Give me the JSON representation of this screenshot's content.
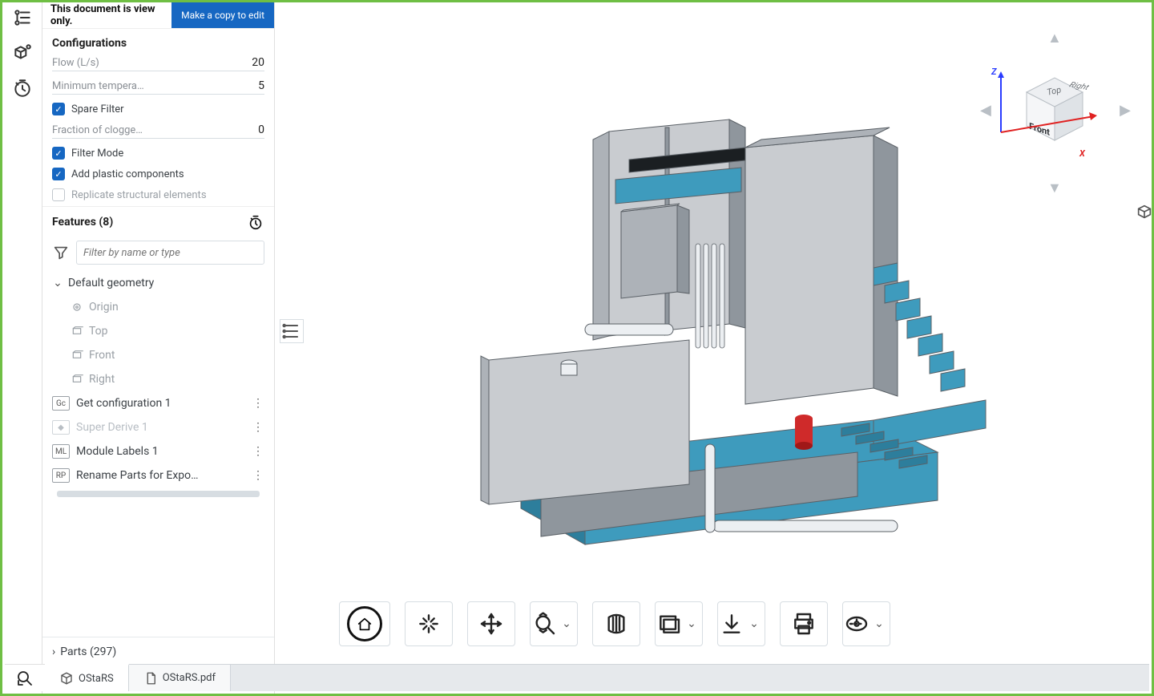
{
  "notice": {
    "text": "This document is view only.",
    "button": "Make a copy to edit"
  },
  "configurations": {
    "title": "Configurations",
    "rows": [
      {
        "kind": "num",
        "label": "Flow (L/s)",
        "value": "20"
      },
      {
        "kind": "num",
        "label": "Minimum tempera…",
        "value": "5"
      },
      {
        "kind": "chk",
        "label": "Spare Filter",
        "checked": true
      },
      {
        "kind": "num",
        "label": "Fraction of clogge…",
        "value": "0"
      },
      {
        "kind": "chk",
        "label": "Filter Mode",
        "checked": true
      },
      {
        "kind": "chk",
        "label": "Add plastic components",
        "checked": true
      },
      {
        "kind": "chk",
        "label": "Replicate structural elements",
        "checked": false
      }
    ]
  },
  "features": {
    "title": "Features (8)",
    "filter_placeholder": "Filter by name or type",
    "default_geometry": {
      "label": "Default geometry",
      "children": [
        {
          "label": "Origin",
          "icon": "origin"
        },
        {
          "label": "Top",
          "icon": "plane"
        },
        {
          "label": "Front",
          "icon": "plane"
        },
        {
          "label": "Right",
          "icon": "plane"
        }
      ]
    },
    "items": [
      {
        "badge": "Gc",
        "label": "Get configuration 1",
        "dim": false
      },
      {
        "badge": "◆",
        "label": "Super Derive 1",
        "dim": true
      },
      {
        "badge": "ML",
        "label": "Module Labels 1",
        "dim": false
      },
      {
        "badge": "RP",
        "label": "Rename Parts for Expo…",
        "dim": false
      }
    ]
  },
  "parts": {
    "label": "Parts (297)"
  },
  "tabs": [
    {
      "label": "OStaRS",
      "icon": "part-studio",
      "active": true
    },
    {
      "label": "OStaRS.pdf",
      "icon": "pdf",
      "active": false
    }
  ],
  "viewcube": {
    "faces": {
      "top": "Top",
      "front": "Front",
      "right": "Right"
    },
    "axes": {
      "x": "X",
      "z": "Z"
    }
  },
  "toolbar": [
    {
      "name": "home",
      "dropdown": false
    },
    {
      "name": "fit",
      "dropdown": false
    },
    {
      "name": "pan",
      "dropdown": false
    },
    {
      "name": "zoom",
      "dropdown": true
    },
    {
      "name": "section",
      "dropdown": false
    },
    {
      "name": "named-views",
      "dropdown": true
    },
    {
      "name": "export",
      "dropdown": true
    },
    {
      "name": "print",
      "dropdown": false
    },
    {
      "name": "measure",
      "dropdown": true
    }
  ],
  "model_colors": {
    "concrete_light": "#c9ccd0",
    "concrete_mid": "#adb2b8",
    "concrete_dark": "#8f969d",
    "water": "#3e9bbd",
    "water_dark": "#2d7e9c",
    "pipe": "#eceff2",
    "accent_red": "#cf2a2a",
    "edge": "#5a6066"
  }
}
